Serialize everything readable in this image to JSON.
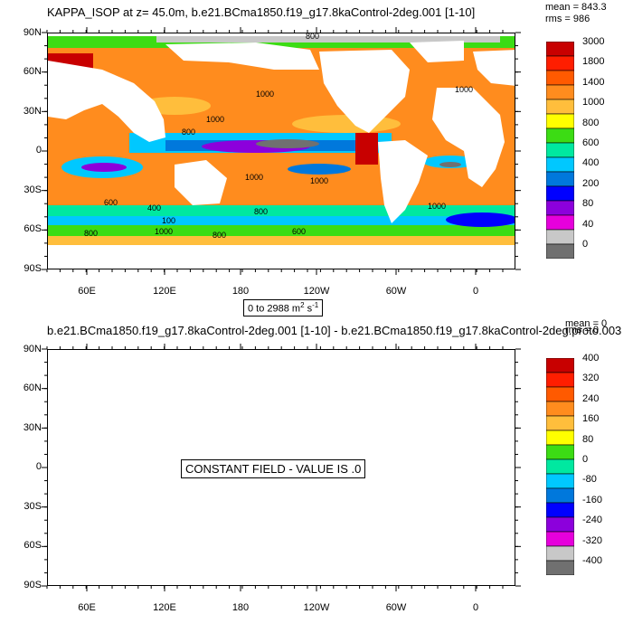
{
  "panel_top": {
    "title": "KAPPA_ISOP at z=  45.0m, b.e21.BCma1850.f19_g17.8kaControl-2deg.001 [1-10]",
    "stats": {
      "mean": "mean = 843.3",
      "rms": "rms = 986"
    },
    "range_label_main": "0 to 2988 m",
    "range_label_sup": "2",
    "range_label_tail": " s",
    "range_label_sup2": "-1",
    "lat_labels": [
      "90N",
      "60N",
      "30N",
      "0",
      "30S",
      "60S",
      "90S"
    ],
    "lon_labels": [
      "60E",
      "120E",
      "180",
      "120W",
      "60W",
      "0"
    ],
    "colorbar": {
      "labels": [
        "3000",
        "1800",
        "1400",
        "1000",
        "800",
        "600",
        "400",
        "200",
        "80",
        "40",
        "0"
      ],
      "colors": [
        "#c80000",
        "#ff1e00",
        "#ff5a00",
        "#ff8c1e",
        "#ffbe3c",
        "#ffff00",
        "#3cdc14",
        "#00e8a0",
        "#00c8ff",
        "#0078dc",
        "#0000ff",
        "#8c00dc",
        "#e600dc",
        "#c8c8c8",
        "#707070"
      ]
    },
    "contour_labels": [
      "1000",
      "1000",
      "1000",
      "800",
      "1000",
      "600",
      "400",
      "1000",
      "1000",
      "600",
      "800",
      "100",
      "1000",
      "800",
      "800",
      "800"
    ]
  },
  "panel_bottom": {
    "title": "b.e21.BCma1850.f19_g17.8kaControl-2deg.001 [1-10] - b.e21.BCma1850.f19_g17.8kaControl-2deg.proto.003",
    "stats": {
      "mean": "mean = 0",
      "rms": "rms = 0"
    },
    "constant_message": "CONSTANT FIELD - VALUE IS .0",
    "lat_labels": [
      "90N",
      "60N",
      "30N",
      "0",
      "30S",
      "60S",
      "90S"
    ],
    "lon_labels": [
      "60E",
      "120E",
      "180",
      "120W",
      "60W",
      "0"
    ],
    "colorbar": {
      "labels": [
        "400",
        "320",
        "240",
        "160",
        "80",
        "0",
        "-80",
        "-160",
        "-240",
        "-320",
        "-400"
      ],
      "colors": [
        "#c80000",
        "#ff1e00",
        "#ff5a00",
        "#ff8c1e",
        "#ffbe3c",
        "#ffff00",
        "#3cdc14",
        "#00e8a0",
        "#00c8ff",
        "#0078dc",
        "#0000ff",
        "#8c00dc",
        "#e600dc",
        "#c8c8c8",
        "#707070"
      ]
    }
  }
}
